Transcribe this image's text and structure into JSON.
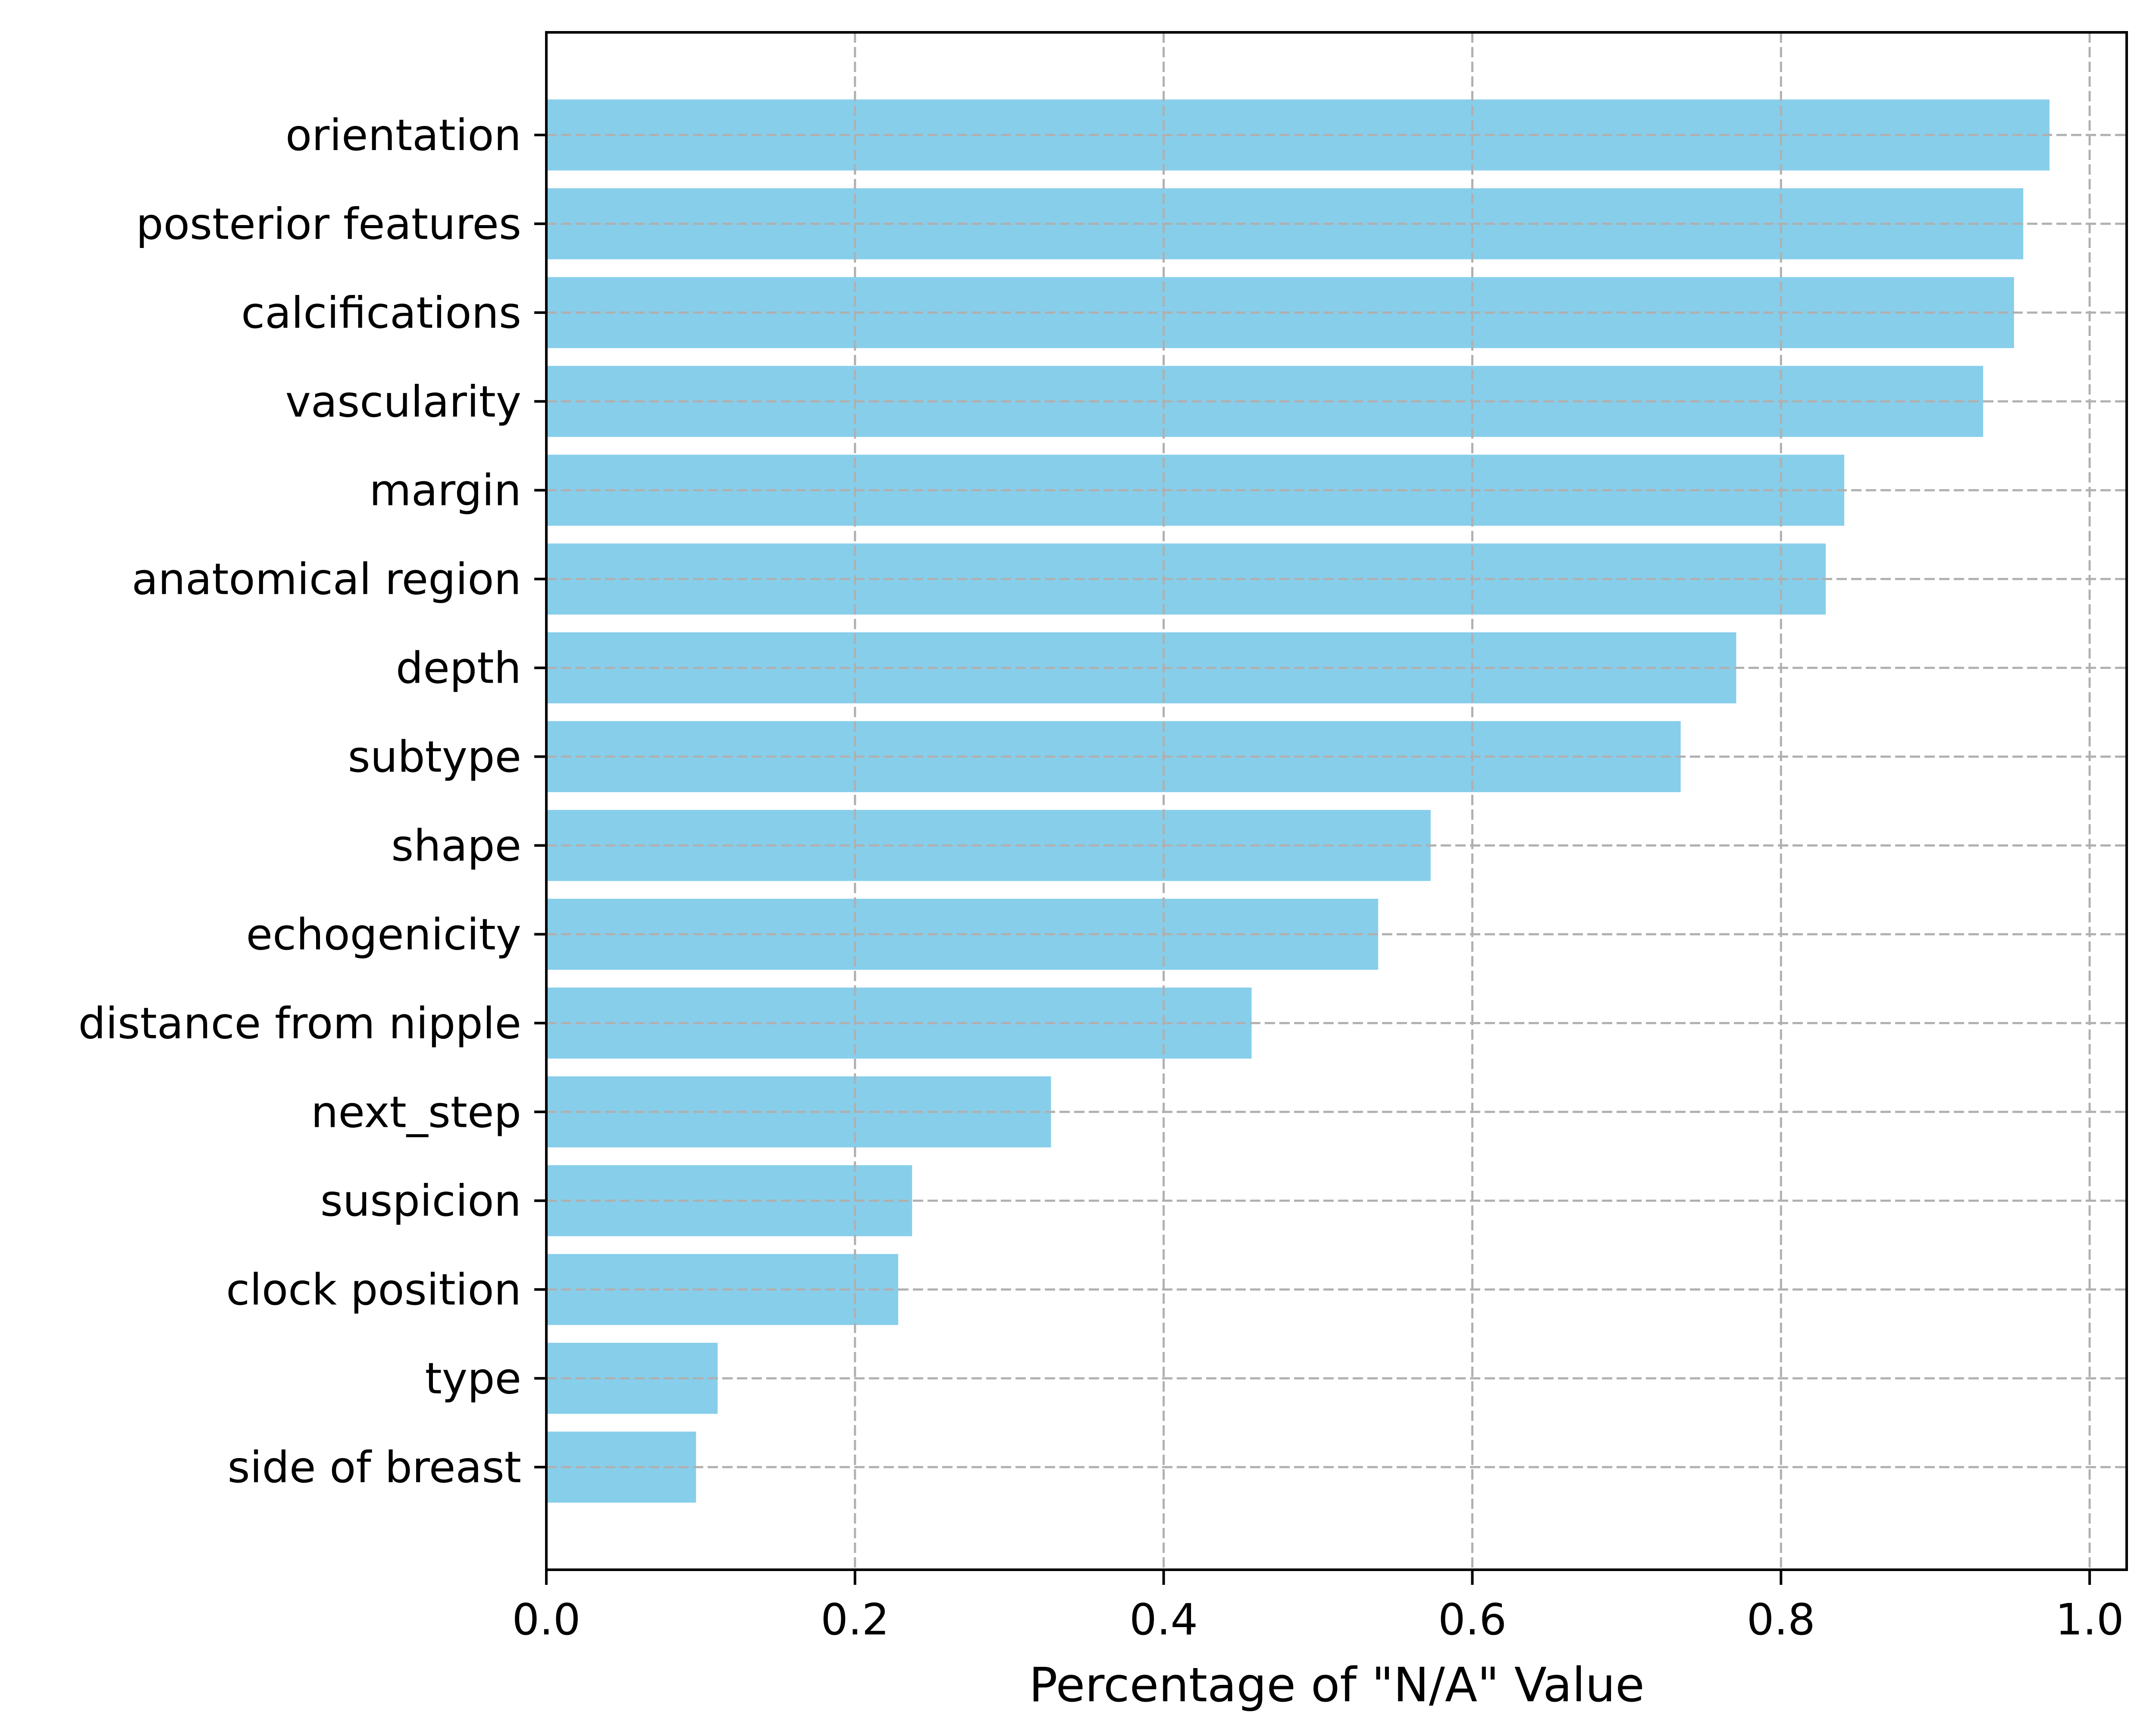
{
  "figure": {
    "background_color": "#ffffff",
    "title": ""
  },
  "chart_data": {
    "type": "bar",
    "orientation": "horizontal",
    "title": "",
    "xlabel": "Percentage of \"N/A\" Value",
    "ylabel": "",
    "categories": [
      "orientation",
      "posterior features",
      "calcifications",
      "vascularity",
      "margin",
      "anatomical region",
      "depth",
      "subtype",
      "shape",
      "echogenicity",
      "distance from nipple",
      "next_step",
      "suspicion",
      "clock position",
      "type",
      "side of breast"
    ],
    "values": [
      0.974,
      0.957,
      0.951,
      0.931,
      0.841,
      0.829,
      0.771,
      0.735,
      0.573,
      0.539,
      0.457,
      0.327,
      0.237,
      0.228,
      0.111,
      0.097
    ],
    "x_ticks": [
      0.0,
      0.2,
      0.4,
      0.6,
      0.8,
      1.0
    ],
    "x_tick_labels": [
      "0.0",
      "0.2",
      "0.4",
      "0.6",
      "0.8",
      "1.0"
    ],
    "xlim": [
      0,
      1.024
    ],
    "grid": "dashed",
    "grid_on": true,
    "legend": "none",
    "colors": {
      "bar": "#87ceeb",
      "grid": "#b0b0b0",
      "axis": "#000000",
      "text": "#000000"
    }
  }
}
